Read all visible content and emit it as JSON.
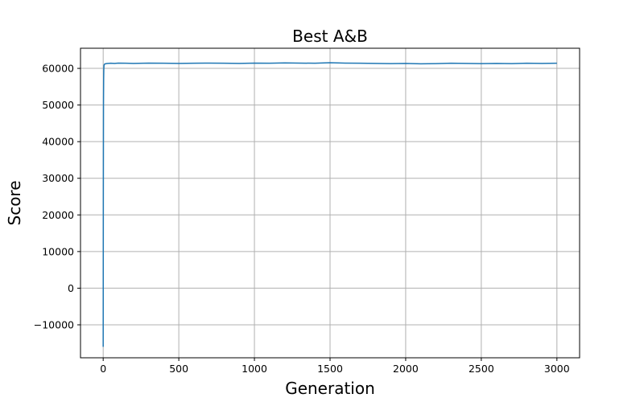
{
  "chart_data": {
    "type": "line",
    "title": "Best A&B",
    "xlabel": "Generation",
    "ylabel": "Score",
    "xlim": [
      -150,
      3150
    ],
    "ylim": [
      -19000,
      65500
    ],
    "x_ticks": [
      0,
      500,
      1000,
      1500,
      2000,
      2500,
      3000
    ],
    "y_ticks": [
      -10000,
      0,
      10000,
      20000,
      30000,
      40000,
      50000,
      60000
    ],
    "x_tick_labels": [
      "0",
      "500",
      "1000",
      "1500",
      "2000",
      "2500",
      "3000"
    ],
    "y_tick_labels": [
      "−10000",
      "0",
      "10000",
      "20000",
      "30000",
      "40000",
      "50000",
      "60000"
    ],
    "grid": true,
    "series": [
      {
        "color": "#1f77b4",
        "x": [
          0,
          1,
          2,
          3,
          4,
          5,
          6,
          8,
          10,
          15,
          20,
          30,
          50,
          75,
          100,
          150,
          200,
          300,
          400,
          500,
          600,
          700,
          800,
          900,
          1000,
          1100,
          1200,
          1300,
          1400,
          1500,
          1600,
          1700,
          1800,
          1900,
          2000,
          2100,
          2200,
          2300,
          2400,
          2500,
          2600,
          2700,
          2800,
          2900,
          3000
        ],
        "y": [
          -16000,
          25000,
          50000,
          57000,
          59500,
          60500,
          60900,
          61100,
          61200,
          61250,
          61300,
          61350,
          61400,
          61350,
          61450,
          61400,
          61350,
          61450,
          61400,
          61350,
          61400,
          61450,
          61400,
          61350,
          61450,
          61400,
          61500,
          61450,
          61400,
          61550,
          61450,
          61400,
          61350,
          61300,
          61350,
          61250,
          61300,
          61400,
          61350,
          61300,
          61350,
          61300,
          61400,
          61350,
          61400
        ]
      }
    ]
  }
}
